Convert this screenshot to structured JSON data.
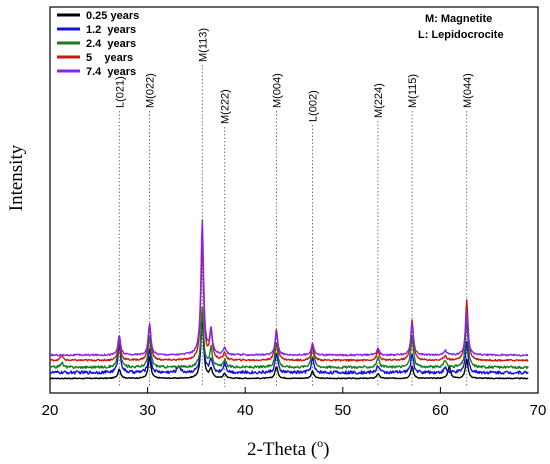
{
  "chart_data": {
    "type": "line",
    "xlabel": "2-Theta (",
    "xlabel_degree": "o",
    "xlabel_close": ")",
    "ylabel": "Intensity",
    "xlim": [
      20,
      70
    ],
    "xticks": [
      20,
      30,
      40,
      50,
      60,
      70
    ],
    "phase_key": [
      "M: Magnetite",
      "L: Lepidocrocite"
    ],
    "reference_peaks": [
      {
        "label": "L(021)",
        "x": 27.1
      },
      {
        "label": "M(022)",
        "x": 30.2
      },
      {
        "label": "M(113)",
        "x": 35.6
      },
      {
        "label": "M(222)",
        "x": 37.9
      },
      {
        "label": "M(004)",
        "x": 43.2
      },
      {
        "label": "L(002)",
        "x": 46.9
      },
      {
        "label": "M(224)",
        "x": 53.6
      },
      {
        "label": "M(115)",
        "x": 57.1
      },
      {
        "label": "M(044)",
        "x": 62.7
      }
    ],
    "series": [
      {
        "name": "0.25 years",
        "color": "#000000",
        "baseline": 0.25,
        "noise": 0.4,
        "peaks": [
          [
            27.1,
            4
          ],
          [
            30.2,
            9
          ],
          [
            35.6,
            26
          ],
          [
            36.5,
            4
          ],
          [
            37.9,
            2
          ],
          [
            43.2,
            5
          ],
          [
            46.9,
            3
          ],
          [
            53.6,
            2
          ],
          [
            57.1,
            5
          ],
          [
            60.9,
            5
          ],
          [
            62.7,
            8
          ]
        ]
      },
      {
        "name": "1.2  years",
        "color": "#1010e0",
        "baseline": 2.7,
        "noise": 1.3,
        "peaks": [
          [
            27.1,
            12
          ],
          [
            30.2,
            10
          ],
          [
            33.2,
            3
          ],
          [
            35.6,
            24
          ],
          [
            36.5,
            6
          ],
          [
            37.9,
            4
          ],
          [
            43.2,
            8
          ],
          [
            46.9,
            6
          ],
          [
            53.6,
            3
          ],
          [
            57.1,
            8
          ],
          [
            60.5,
            2
          ],
          [
            62.7,
            13
          ]
        ]
      },
      {
        "name": "2.4  years",
        "color": "#1d7a1d",
        "baseline": 4.9,
        "noise": 1.0,
        "peaks": [
          [
            21.2,
            2
          ],
          [
            27.1,
            12
          ],
          [
            30.2,
            13
          ],
          [
            35.6,
            25
          ],
          [
            36.5,
            8
          ],
          [
            37.9,
            3
          ],
          [
            43.2,
            11
          ],
          [
            46.9,
            9
          ],
          [
            53.6,
            4
          ],
          [
            57.1,
            13
          ],
          [
            60.5,
            3
          ],
          [
            62.7,
            19
          ]
        ]
      },
      {
        "name": "5    years",
        "color": "#cc1a0a",
        "baseline": 7.8,
        "noise": 0.7,
        "peaks": [
          [
            21.2,
            2
          ],
          [
            27.1,
            9
          ],
          [
            30.2,
            15
          ],
          [
            35.6,
            50
          ],
          [
            36.5,
            12
          ],
          [
            37.9,
            3
          ],
          [
            43.2,
            13
          ],
          [
            46.9,
            6
          ],
          [
            53.6,
            4
          ],
          [
            57.1,
            17
          ],
          [
            60.5,
            2
          ],
          [
            62.7,
            25
          ]
        ]
      },
      {
        "name": "7.4  years",
        "color": "#8822ee",
        "baseline": 10.0,
        "noise": 0.7,
        "peaks": [
          [
            27.1,
            8
          ],
          [
            30.2,
            13
          ],
          [
            35.6,
            56
          ],
          [
            36.5,
            10
          ],
          [
            37.9,
            3
          ],
          [
            43.2,
            10
          ],
          [
            46.9,
            5
          ],
          [
            53.6,
            3
          ],
          [
            57.1,
            13
          ],
          [
            60.5,
            2
          ],
          [
            62.7,
            18
          ]
        ]
      }
    ],
    "grid": false,
    "legend_position": "top-left"
  }
}
